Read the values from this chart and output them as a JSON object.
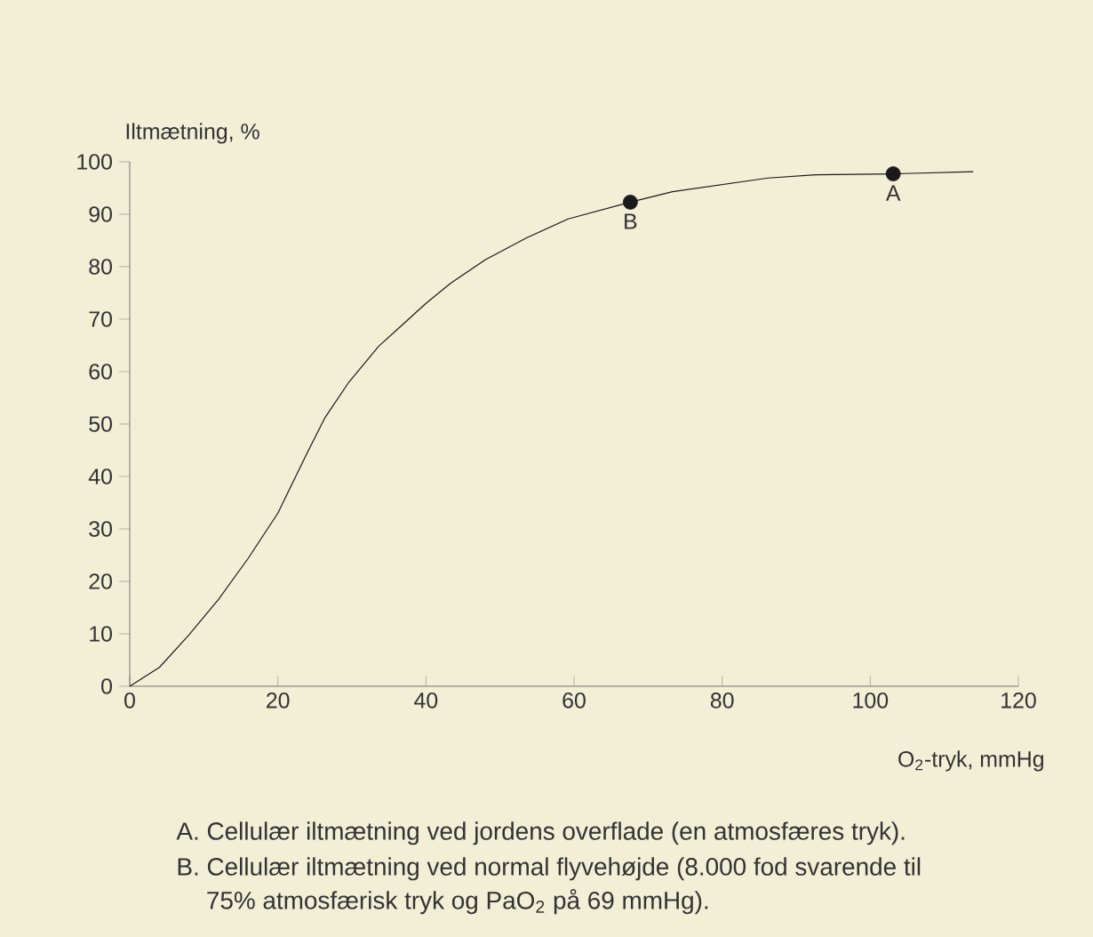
{
  "chart_data": {
    "type": "line",
    "xlabel": "O$_{2}$-tryk, mmHg",
    "ylabel": "Iltmætning, %",
    "xlim": [
      0,
      120
    ],
    "ylim": [
      0,
      100
    ],
    "xticks": [
      0,
      20,
      40,
      60,
      80,
      100,
      120
    ],
    "yticks": [
      0,
      10,
      20,
      30,
      40,
      50,
      60,
      70,
      80,
      90,
      100
    ],
    "grid": false,
    "series": [
      {
        "color": "#1a1a1a",
        "x": [
          0,
          4,
          8,
          12,
          16,
          20,
          24,
          26.4,
          29.6,
          33.6,
          36.8,
          40,
          43.2,
          48,
          53.6,
          59.2,
          60,
          67.6,
          73.3,
          86.2,
          92.6,
          103.1,
          113.9
        ],
        "values": [
          0,
          3.6,
          9.8,
          16.6,
          24.4,
          33,
          44.6,
          51.3,
          58,
          64.8,
          68.9,
          73,
          76.7,
          81.3,
          85.5,
          89.1,
          89.4,
          92.3,
          94.3,
          96.9,
          97.5,
          97.7,
          98.1
        ]
      },
      {
        "type": "scatter",
        "color": "#1a1a1a",
        "x": [
          67.6,
          103.1
        ],
        "values": [
          92.3,
          97.7
        ]
      }
    ],
    "annotations": [
      {
        "text": "A",
        "x": 103.1,
        "y": 97.7
      },
      {
        "text": "B",
        "x": 67.6,
        "y": 92.3
      },
      "A. Cellulær iltmætning ved jordens overflade (en atmosfæres tryk).",
      "B. Cellulær iltmætning ved normal flyvehøjde (8.000 fod svarende til 75% atmosfærisk tryk og PaO$_{2}$ på 69 mmHg)."
    ]
  }
}
